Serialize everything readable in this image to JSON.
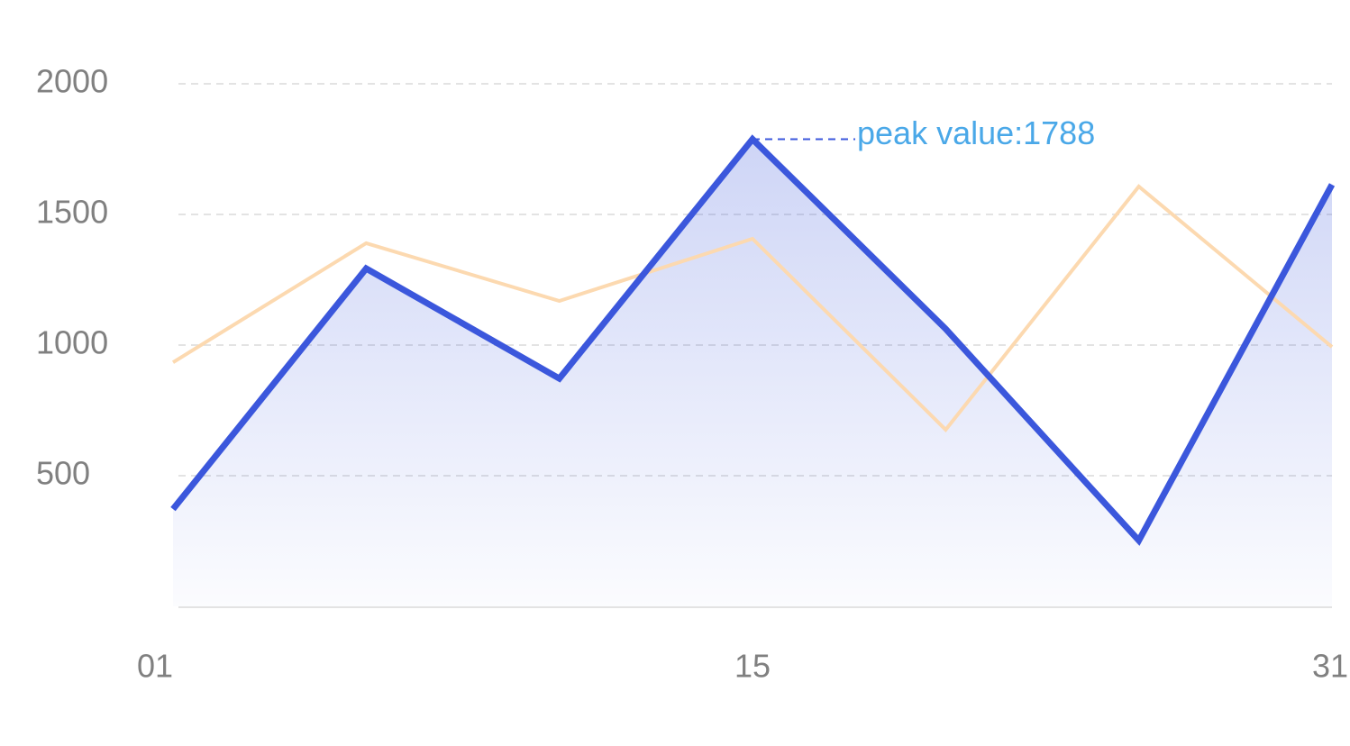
{
  "chart_data": {
    "type": "line",
    "categories": [
      "01",
      null,
      null,
      "15",
      null,
      null,
      "31"
    ],
    "series": [
      {
        "color": "#fcd9b0",
        "values": [
          934,
          1390,
          1169,
          1407,
          676,
          1607,
          993
        ]
      },
      {
        "color": "#3b57dc",
        "values": [
          372,
          1293,
          872,
          1788,
          1062,
          252,
          1614
        ],
        "area": true
      }
    ],
    "ylim": [
      0,
      2000
    ],
    "yticks": [
      500,
      1000,
      1500,
      2000
    ],
    "grid": true,
    "annotation": "peak value:1788"
  }
}
